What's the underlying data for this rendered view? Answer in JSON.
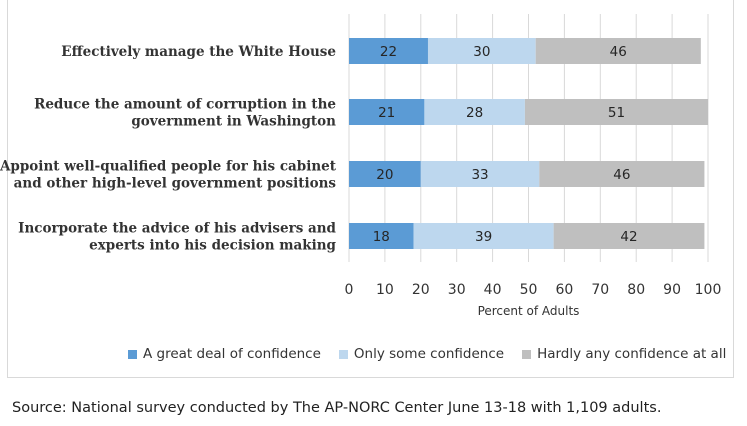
{
  "chart_data": {
    "type": "bar",
    "orientation": "horizontal",
    "stacked": true,
    "categories": [
      [
        "Effectively manage the White House"
      ],
      [
        "Reduce the amount of corruption in the",
        "government in Washington"
      ],
      [
        "Appoint well-qualified people for his cabinet",
        "and other high-level government positions"
      ],
      [
        "Incorporate the advice of his advisers and",
        "experts into his decision making"
      ]
    ],
    "series": [
      {
        "name": "A great deal of confidence",
        "color": "#5b9bd5",
        "values": [
          22,
          21,
          20,
          18
        ]
      },
      {
        "name": "Only some confidence",
        "color": "#bdd7ee",
        "values": [
          30,
          28,
          33,
          39
        ]
      },
      {
        "name": "Hardly any confidence at all",
        "color": "#bfbfbf",
        "values": [
          46,
          51,
          46,
          42
        ]
      }
    ],
    "xlabel": "Percent of Adults",
    "xlim": [
      0,
      100
    ],
    "xticks": [
      0,
      10,
      20,
      30,
      40,
      50,
      60,
      70,
      80,
      90,
      100
    ],
    "grid": "vertical",
    "legend_position": "bottom"
  },
  "source": "Source: National survey conducted by The AP-NORC Center June 13-18 with 1,109 adults."
}
